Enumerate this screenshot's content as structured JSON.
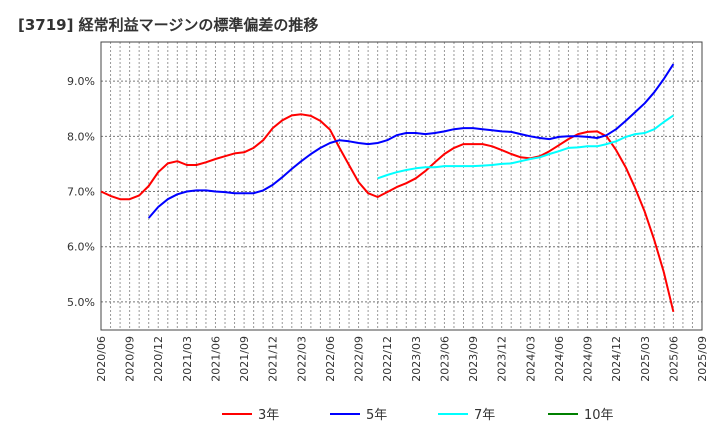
{
  "chart_data": {
    "type": "line",
    "title": "[3719]  経常利益マージンの標準偏差の推移",
    "xlabel": "",
    "ylabel": "",
    "ylim": [
      4.49,
      9.71
    ],
    "yticks": [
      5.0,
      6.0,
      7.0,
      8.0,
      9.0
    ],
    "ytick_labels": [
      "5.0%",
      "6.0%",
      "7.0%",
      "8.0%",
      "9.0%"
    ],
    "xtick_labels": [
      "2020/06",
      "2020/09",
      "2020/12",
      "2021/03",
      "2021/06",
      "2021/09",
      "2021/12",
      "2022/03",
      "2022/06",
      "2022/09",
      "2022/12",
      "2023/03",
      "2023/06",
      "2023/09",
      "2023/12",
      "2024/03",
      "2024/06",
      "2024/09",
      "2024/12",
      "2025/03",
      "2025/06",
      "2025/09"
    ],
    "x_start": "2020/06",
    "x_step": "monthly",
    "grid": true,
    "legend_position": "bottom",
    "series": [
      {
        "name": "3年",
        "color": "#ff0000",
        "start_index": 0,
        "values": [
          7.0,
          6.92,
          6.86,
          6.86,
          6.93,
          7.1,
          7.35,
          7.51,
          7.55,
          7.48,
          7.48,
          7.53,
          7.59,
          7.64,
          7.69,
          7.71,
          7.79,
          7.93,
          8.15,
          8.29,
          8.38,
          8.4,
          8.37,
          8.28,
          8.12,
          7.79,
          7.48,
          7.17,
          6.97,
          6.9,
          6.99,
          7.08,
          7.15,
          7.24,
          7.37,
          7.53,
          7.68,
          7.79,
          7.86,
          7.86,
          7.86,
          7.82,
          7.75,
          7.68,
          7.62,
          7.6,
          7.64,
          7.73,
          7.84,
          7.95,
          8.04,
          8.08,
          8.09,
          8.0,
          7.75,
          7.44,
          7.06,
          6.63,
          6.12,
          5.54,
          4.82
        ]
      },
      {
        "name": "5年",
        "color": "#0000ff",
        "start_index": 5,
        "values": [
          6.52,
          6.72,
          6.86,
          6.95,
          7.0,
          7.02,
          7.02,
          7.0,
          6.99,
          6.97,
          6.97,
          6.97,
          7.02,
          7.12,
          7.26,
          7.41,
          7.55,
          7.68,
          7.79,
          7.88,
          7.93,
          7.91,
          7.88,
          7.86,
          7.88,
          7.93,
          8.02,
          8.06,
          8.06,
          8.04,
          8.06,
          8.09,
          8.13,
          8.15,
          8.15,
          8.13,
          8.11,
          8.09,
          8.08,
          8.04,
          8.0,
          7.97,
          7.95,
          7.99,
          8.0,
          8.0,
          7.99,
          7.97,
          8.02,
          8.13,
          8.28,
          8.44,
          8.6,
          8.8,
          9.04,
          9.31
        ]
      },
      {
        "name": "7年",
        "color": "#00ffff",
        "start_index": 29,
        "values": [
          7.24,
          7.3,
          7.35,
          7.39,
          7.42,
          7.44,
          7.44,
          7.46,
          7.46,
          7.46,
          7.46,
          7.47,
          7.48,
          7.5,
          7.51,
          7.55,
          7.59,
          7.62,
          7.68,
          7.73,
          7.79,
          7.8,
          7.82,
          7.82,
          7.86,
          7.91,
          7.99,
          8.04,
          8.06,
          8.13,
          8.26,
          8.38
        ]
      },
      {
        "name": "10年",
        "color": "#008000",
        "start_index": 0,
        "values": []
      }
    ]
  }
}
